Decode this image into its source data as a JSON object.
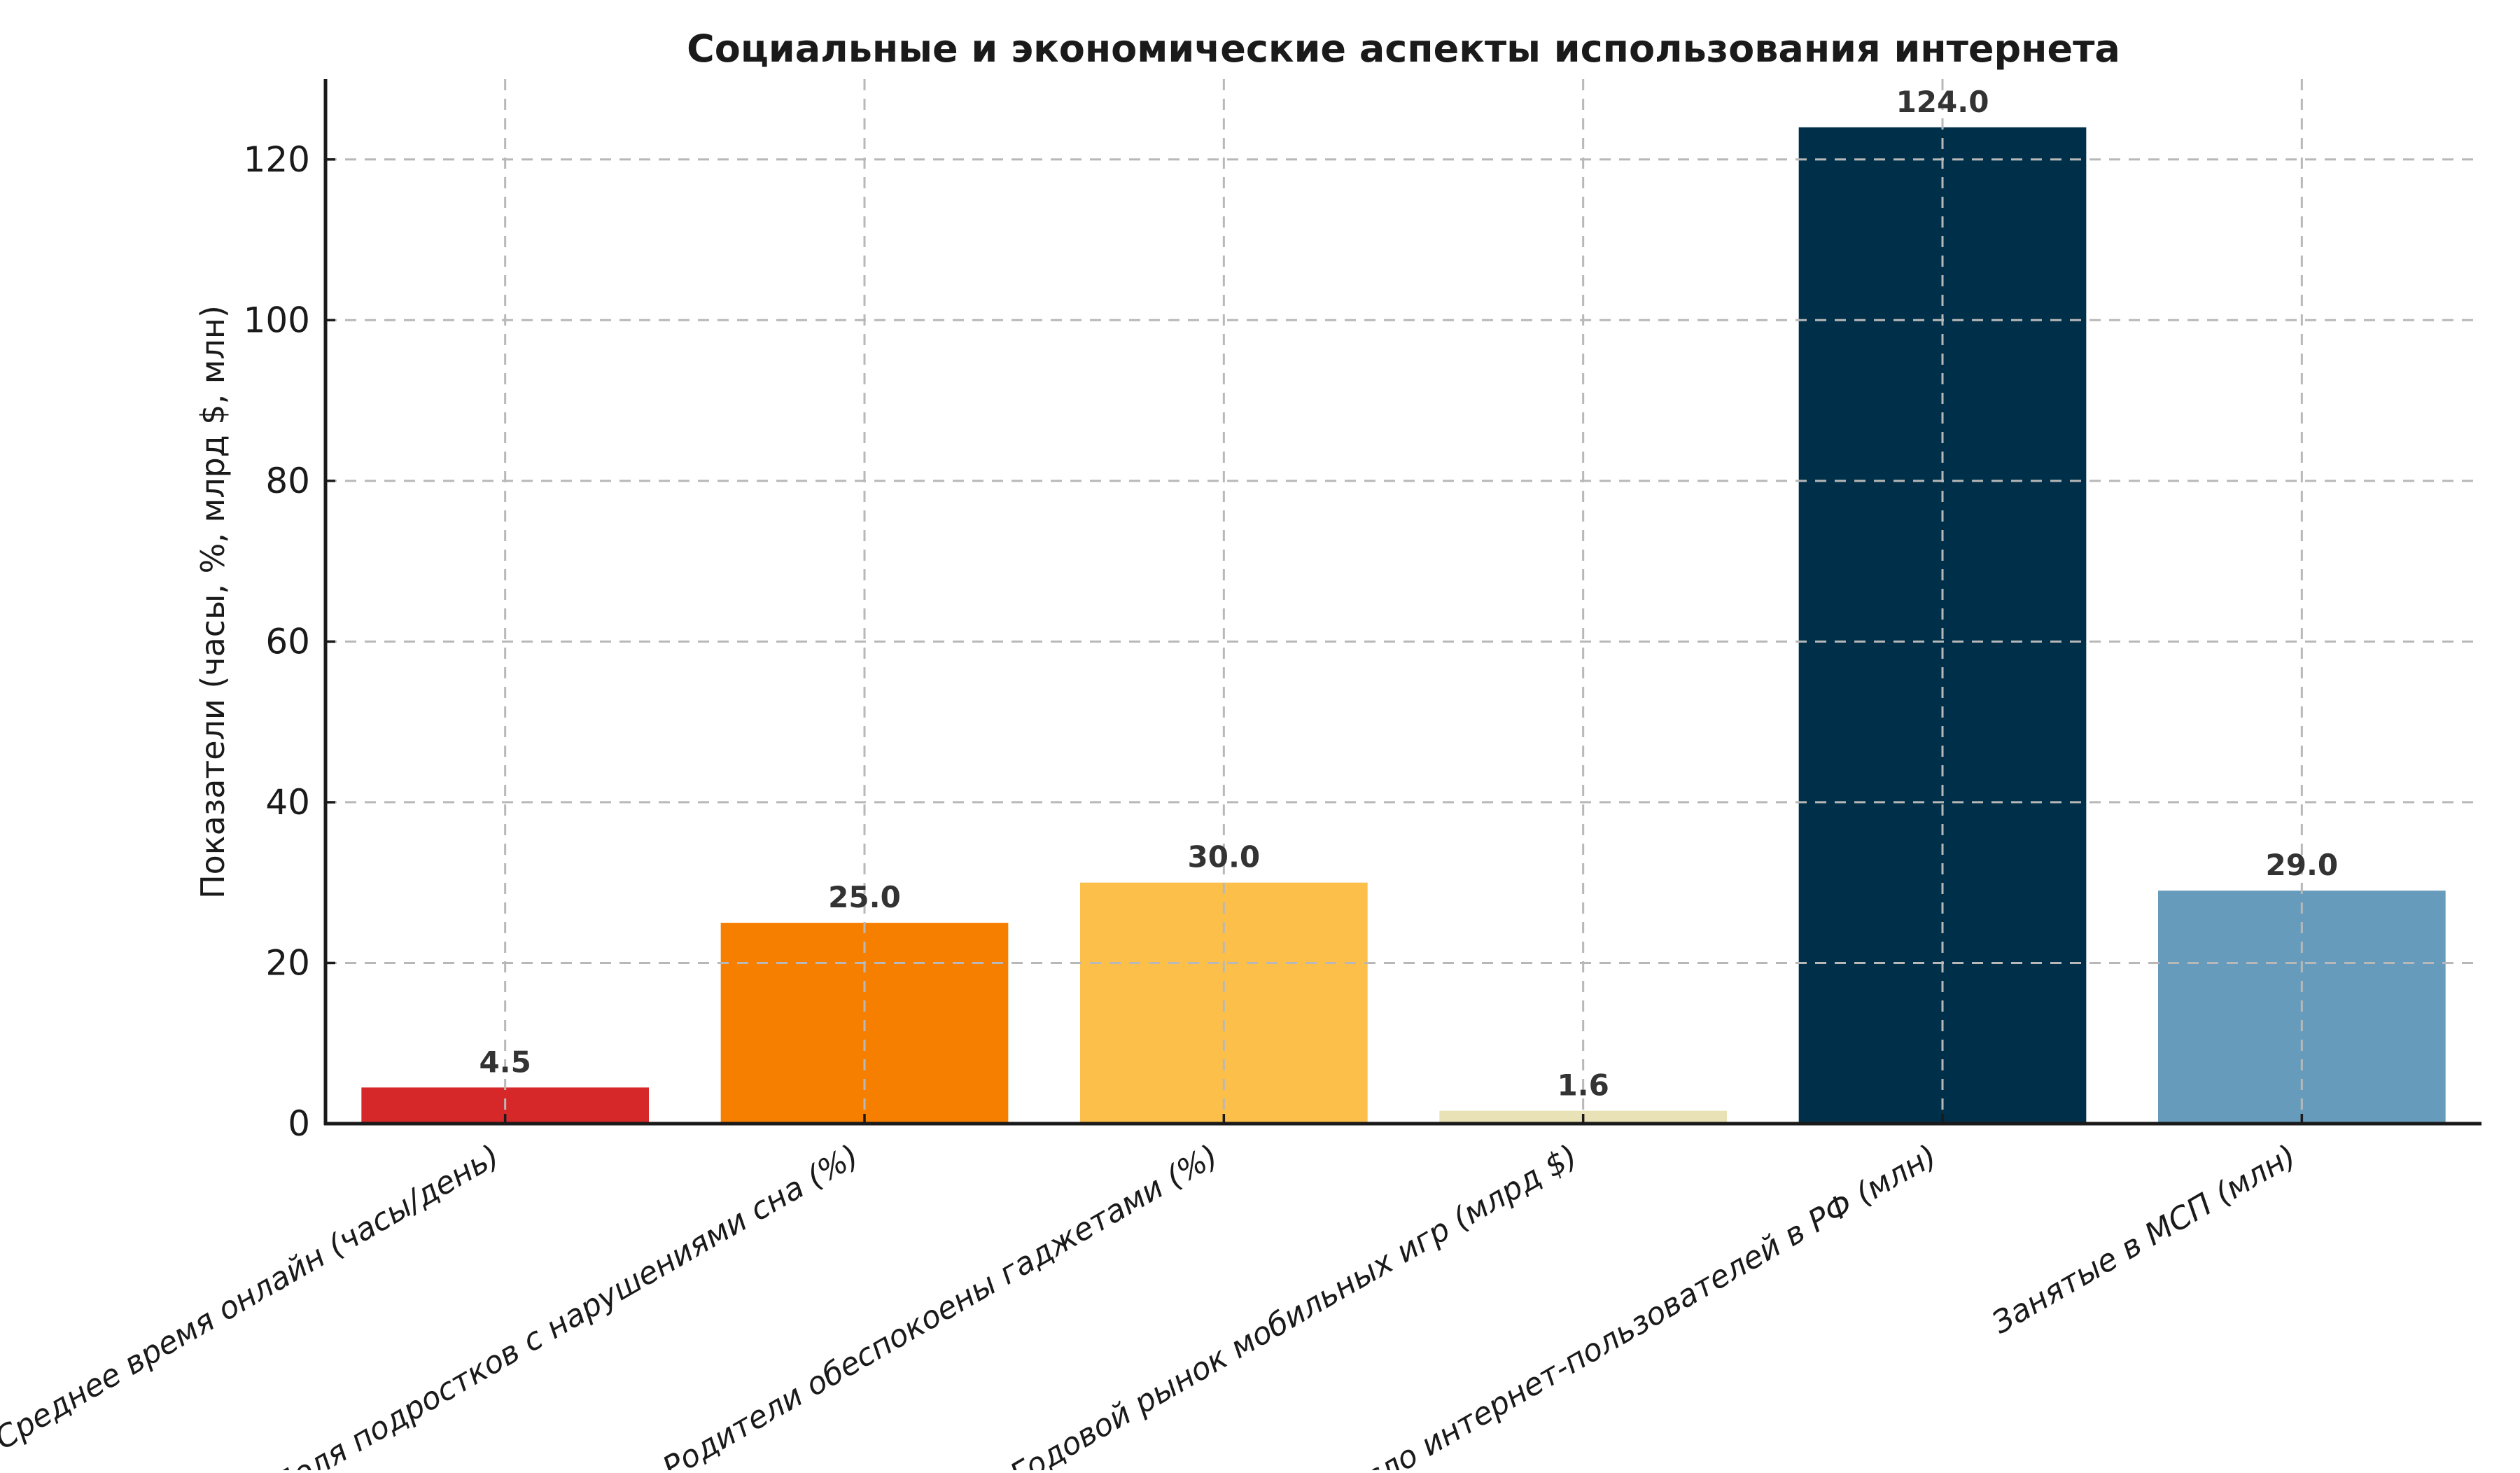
{
  "chart_data": {
    "type": "bar",
    "title": "Социальные и экономические аспекты использования интернета",
    "ylabel": "Показатели (часы, %, млрд $, млн)",
    "xlabel": "",
    "categories": [
      "Среднее время онлайн (часы/день)",
      "Доля подростков с нарушениями сна (%)",
      "Родители обеспокоены гаджетами (%)",
      "Годовой рынок мобильных игр (млрд $)",
      "Число интернет-пользователей в РФ (млн)",
      "Занятые в МСП (млн)"
    ],
    "values": [
      4.5,
      25.0,
      30.0,
      1.6,
      124.0,
      29.0
    ],
    "bar_value_labels": [
      "4.5",
      "25.0",
      "30.0",
      "1.6",
      "124.0",
      "29.0"
    ],
    "bar_colors": [
      "#d62828",
      "#f77f00",
      "#fcbf49",
      "#eae2b7",
      "#003049",
      "#669bbc"
    ],
    "yticks": [
      "0",
      "20",
      "40",
      "60",
      "80",
      "100",
      "120"
    ],
    "ytick_values": [
      0,
      20,
      40,
      60,
      80,
      100,
      120
    ],
    "ylim": [
      0,
      130
    ],
    "grid": "dashed-both-axes",
    "grid_on": true,
    "legend_position": "none",
    "background_color": "#ffffff",
    "title_color": "#1a1a1a",
    "tick_label_color": "#1a1a1a",
    "value_label_color": "#333333",
    "grid_color": "#b8b8b8",
    "axis_color": "#1a1a1a",
    "xtick_label_style": "italic, rotated 30deg"
  }
}
